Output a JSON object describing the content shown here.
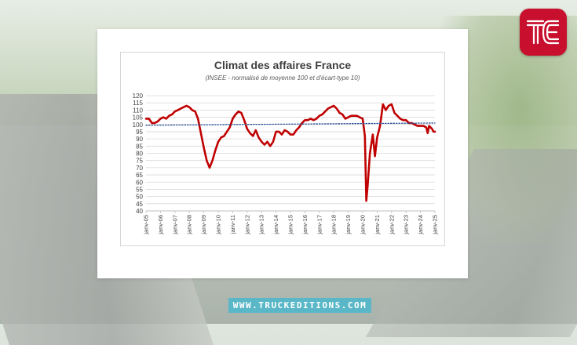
{
  "chart_data": {
    "type": "line",
    "title": "Climat des affaires France",
    "subtitle": "(INSEE - normalisé de moyenne 100 et d'écart-type 10)",
    "ylim": [
      40,
      120
    ],
    "yticks": [
      40,
      45,
      50,
      55,
      60,
      65,
      70,
      75,
      80,
      85,
      90,
      95,
      100,
      105,
      110,
      115,
      120
    ],
    "xlim": [
      2005,
      2025
    ],
    "xticks": [
      "janv-05",
      "janv-06",
      "janv-07",
      "janv-08",
      "janv-09",
      "janv-10",
      "janv-11",
      "janv-12",
      "janv-13",
      "janv-14",
      "janv-15",
      "janv-16",
      "janv-17",
      "janv-18",
      "janv-19",
      "janv-20",
      "janv-21",
      "janv-22",
      "janv-23",
      "janv-24",
      "janv-25"
    ],
    "grid": true,
    "series": [
      {
        "color": "#c00000",
        "style": "solid",
        "points": [
          [
            2005.0,
            104
          ],
          [
            2005.2,
            104
          ],
          [
            2005.4,
            101
          ],
          [
            2005.6,
            101
          ],
          [
            2005.8,
            102
          ],
          [
            2006.0,
            104
          ],
          [
            2006.2,
            105
          ],
          [
            2006.4,
            104
          ],
          [
            2006.6,
            106
          ],
          [
            2006.8,
            107
          ],
          [
            2007.0,
            109
          ],
          [
            2007.2,
            110
          ],
          [
            2007.4,
            111
          ],
          [
            2007.6,
            112
          ],
          [
            2007.8,
            113
          ],
          [
            2008.0,
            112
          ],
          [
            2008.2,
            110
          ],
          [
            2008.4,
            109
          ],
          [
            2008.6,
            104
          ],
          [
            2008.8,
            94
          ],
          [
            2009.0,
            84
          ],
          [
            2009.2,
            75
          ],
          [
            2009.4,
            70
          ],
          [
            2009.6,
            75
          ],
          [
            2009.8,
            82
          ],
          [
            2010.0,
            88
          ],
          [
            2010.2,
            91
          ],
          [
            2010.4,
            92
          ],
          [
            2010.6,
            95
          ],
          [
            2010.8,
            98
          ],
          [
            2011.0,
            104
          ],
          [
            2011.2,
            107
          ],
          [
            2011.4,
            109
          ],
          [
            2011.6,
            108
          ],
          [
            2011.8,
            103
          ],
          [
            2012.0,
            97
          ],
          [
            2012.2,
            94
          ],
          [
            2012.4,
            92
          ],
          [
            2012.6,
            96
          ],
          [
            2012.8,
            91
          ],
          [
            2013.0,
            88
          ],
          [
            2013.2,
            86
          ],
          [
            2013.4,
            88
          ],
          [
            2013.6,
            85
          ],
          [
            2013.8,
            88
          ],
          [
            2014.0,
            95
          ],
          [
            2014.2,
            95
          ],
          [
            2014.4,
            93
          ],
          [
            2014.6,
            96
          ],
          [
            2014.8,
            95
          ],
          [
            2015.0,
            93
          ],
          [
            2015.2,
            93
          ],
          [
            2015.4,
            96
          ],
          [
            2015.6,
            98
          ],
          [
            2015.8,
            101
          ],
          [
            2016.0,
            103
          ],
          [
            2016.2,
            103
          ],
          [
            2016.4,
            104
          ],
          [
            2016.6,
            103
          ],
          [
            2016.8,
            104
          ],
          [
            2017.0,
            106
          ],
          [
            2017.2,
            107
          ],
          [
            2017.4,
            109
          ],
          [
            2017.6,
            111
          ],
          [
            2017.8,
            112
          ],
          [
            2018.0,
            113
          ],
          [
            2018.2,
            111
          ],
          [
            2018.4,
            108
          ],
          [
            2018.6,
            107
          ],
          [
            2018.8,
            104
          ],
          [
            2019.0,
            105
          ],
          [
            2019.2,
            106
          ],
          [
            2019.4,
            106
          ],
          [
            2019.6,
            106
          ],
          [
            2019.8,
            105
          ],
          [
            2020.0,
            104
          ],
          [
            2020.15,
            92
          ],
          [
            2020.25,
            47
          ],
          [
            2020.35,
            58
          ],
          [
            2020.5,
            80
          ],
          [
            2020.7,
            93
          ],
          [
            2020.85,
            78
          ],
          [
            2021.0,
            91
          ],
          [
            2021.2,
            99
          ],
          [
            2021.4,
            114
          ],
          [
            2021.6,
            110
          ],
          [
            2021.8,
            113
          ],
          [
            2022.0,
            114
          ],
          [
            2022.2,
            108
          ],
          [
            2022.4,
            106
          ],
          [
            2022.6,
            104
          ],
          [
            2022.8,
            103
          ],
          [
            2023.0,
            103
          ],
          [
            2023.2,
            101
          ],
          [
            2023.4,
            101
          ],
          [
            2023.6,
            100
          ],
          [
            2023.8,
            99
          ],
          [
            2024.0,
            99
          ],
          [
            2024.2,
            99
          ],
          [
            2024.4,
            98
          ],
          [
            2024.5,
            94
          ],
          [
            2024.6,
            99
          ],
          [
            2024.8,
            97
          ],
          [
            2024.9,
            95
          ],
          [
            2025.0,
            95
          ]
        ]
      },
      {
        "color": "#2f5597",
        "style": "dotted",
        "points": [
          [
            2005.0,
            99.5
          ],
          [
            2025.0,
            101
          ]
        ]
      }
    ]
  },
  "branding": {
    "logo_letters": "TE",
    "website": "WWW.TRUCKEDITIONS.COM",
    "logo_color": "#c8102e",
    "banner_color": "#5ab7c7"
  }
}
